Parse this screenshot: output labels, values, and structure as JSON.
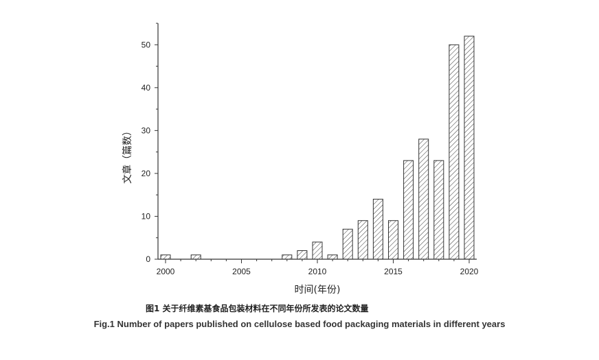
{
  "chart_data": {
    "type": "bar",
    "x": [
      2000,
      2002,
      2008,
      2009,
      2010,
      2011,
      2012,
      2013,
      2014,
      2015,
      2016,
      2017,
      2018,
      2019,
      2020
    ],
    "values": [
      1,
      1,
      1,
      2,
      4,
      1,
      7,
      9,
      14,
      9,
      23,
      28,
      23,
      50,
      52
    ],
    "xlabel": "时间(年份)",
    "ylabel": "文章（篇数）",
    "xlim": [
      2000,
      2020
    ],
    "ylim": [
      0,
      55
    ],
    "xticks": [
      "2000",
      "2005",
      "2010",
      "2015",
      "2020"
    ],
    "yticks": [
      "0",
      "10",
      "20",
      "30",
      "40",
      "50"
    ],
    "bar_pattern": "diagonal-hatch",
    "bar_color": "#444444",
    "grid": false
  },
  "caption": {
    "cn": "图1 关于纤维素基食品包装材料在不同年份所发表的论文数量",
    "en": "Fig.1 Number of papers published on cellulose based food packaging materials in different years"
  }
}
